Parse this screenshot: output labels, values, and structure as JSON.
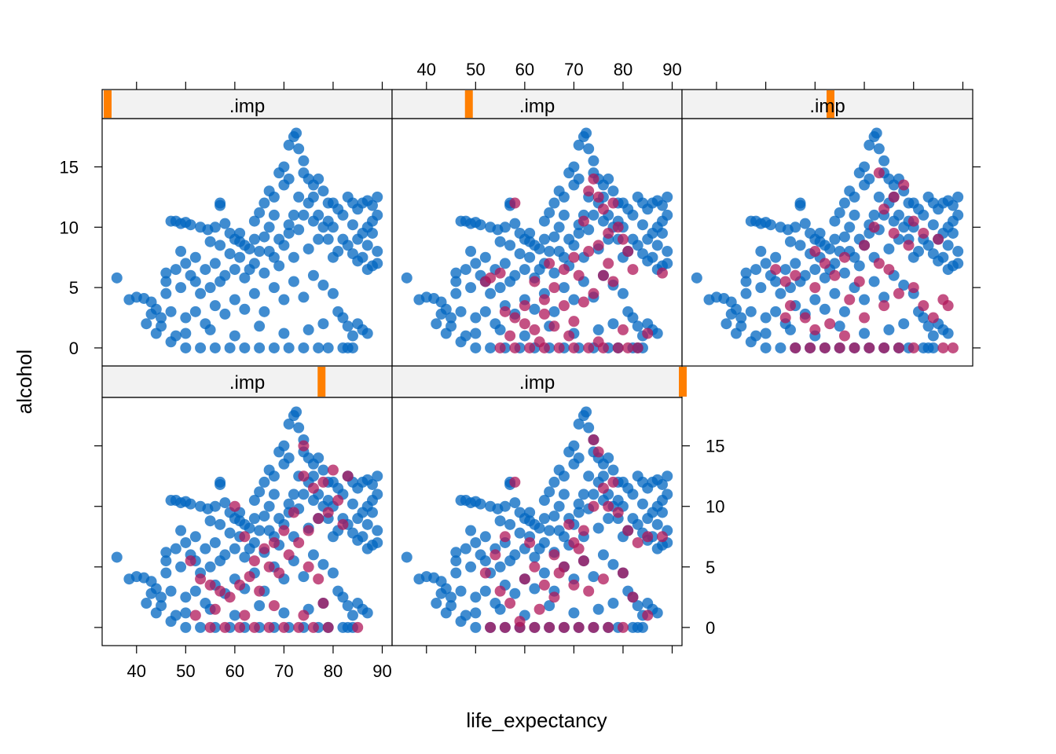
{
  "chart_data": {
    "type": "scatter",
    "layout": "trellis 3 columns x 2 rows, 5 panels",
    "xlabel": "life_expectancy",
    "ylabel": "alcohol",
    "xlim": [
      33,
      92
    ],
    "ylim": [
      -1.5,
      19
    ],
    "x_ticks": [
      "40",
      "50",
      "60",
      "70",
      "80",
      "90"
    ],
    "y_ticks": [
      "0",
      "5",
      "10",
      "15"
    ],
    "colors": {
      "observed": "#0066C0",
      "imputed": "#B0175A",
      "strip_bg": "#F2F2F2",
      "strip_indicator": "#FF7F00"
    },
    "panels": [
      {
        "strip_label": ".imp",
        "imp_index": 0,
        "strip_level": 0.0
      },
      {
        "strip_label": ".imp",
        "imp_index": 1,
        "strip_level": 0.25
      },
      {
        "strip_label": ".imp",
        "imp_index": 2,
        "strip_level": 0.5
      },
      {
        "strip_label": ".imp",
        "imp_index": 3,
        "strip_level": 0.75
      },
      {
        "strip_label": ".imp",
        "imp_index": 4,
        "strip_level": 1.0
      }
    ],
    "observed": [
      [
        36,
        5.8
      ],
      [
        38.5,
        4.0
      ],
      [
        40,
        4.2
      ],
      [
        41.5,
        4.1
      ],
      [
        43,
        3.8
      ],
      [
        44,
        1.2
      ],
      [
        45,
        2.5
      ],
      [
        46,
        6.2
      ],
      [
        47,
        10.5
      ],
      [
        48,
        10.5
      ],
      [
        49,
        10.3
      ],
      [
        50,
        10.4
      ],
      [
        51,
        10.2
      ],
      [
        53,
        10.0
      ],
      [
        54.5,
        9.8
      ],
      [
        56,
        10.0
      ],
      [
        57,
        11.8
      ],
      [
        58,
        10.3
      ],
      [
        59,
        9.5
      ],
      [
        60,
        9.0
      ],
      [
        61,
        8.8
      ],
      [
        62,
        8.5
      ],
      [
        63,
        8.2
      ],
      [
        64,
        10.5
      ],
      [
        65,
        11.2
      ],
      [
        66,
        12.0
      ],
      [
        67,
        13.0
      ],
      [
        68,
        12.5
      ],
      [
        69,
        14.5
      ],
      [
        70,
        15.0
      ],
      [
        71,
        16.8
      ],
      [
        72,
        17.5
      ],
      [
        72.5,
        17.8
      ],
      [
        73,
        16.5
      ],
      [
        74,
        14.5
      ],
      [
        75,
        14.0
      ],
      [
        76,
        13.5
      ],
      [
        77,
        14.0
      ],
      [
        78,
        13.0
      ],
      [
        79,
        12.0
      ],
      [
        80,
        12.0
      ],
      [
        81,
        11.5
      ],
      [
        82,
        11.0
      ],
      [
        83,
        12.5
      ],
      [
        84,
        12.0
      ],
      [
        85,
        11.5
      ],
      [
        86,
        12.0
      ],
      [
        87,
        12.2
      ],
      [
        88,
        11.8
      ],
      [
        89,
        12.5
      ],
      [
        89,
        11.0
      ],
      [
        88,
        9.5
      ],
      [
        87,
        8.5
      ],
      [
        86,
        7.5
      ],
      [
        85,
        7.2
      ],
      [
        84,
        7.8
      ],
      [
        83,
        8.5
      ],
      [
        88,
        6.8
      ],
      [
        89,
        7.0
      ],
      [
        87,
        6.5
      ],
      [
        82,
        9.0
      ],
      [
        81,
        8.0
      ],
      [
        80,
        7.5
      ],
      [
        79,
        9.0
      ],
      [
        78,
        10.0
      ],
      [
        77,
        11.0
      ],
      [
        76,
        10.5
      ],
      [
        75,
        12.0
      ],
      [
        74,
        11.0
      ],
      [
        73,
        12.5
      ],
      [
        72,
        11.0
      ],
      [
        71,
        9.5
      ],
      [
        70,
        8.5
      ],
      [
        69,
        9.0
      ],
      [
        68,
        7.5
      ],
      [
        67,
        8.0
      ],
      [
        66,
        9.2
      ],
      [
        65,
        8.0
      ],
      [
        64,
        7.0
      ],
      [
        63,
        6.5
      ],
      [
        62,
        5.8
      ],
      [
        61,
        7.5
      ],
      [
        60,
        6.5
      ],
      [
        59,
        7.8
      ],
      [
        58,
        6.0
      ],
      [
        57,
        5.5
      ],
      [
        56,
        7.0
      ],
      [
        55,
        5.0
      ],
      [
        54,
        6.5
      ],
      [
        53,
        4.5
      ],
      [
        52,
        5.5
      ],
      [
        51,
        6.0
      ],
      [
        50,
        7.0
      ],
      [
        49,
        5.0
      ],
      [
        48,
        6.5
      ],
      [
        47,
        3.0
      ],
      [
        46,
        4.5
      ],
      [
        45,
        1.8
      ],
      [
        48,
        1.0
      ],
      [
        50,
        2.5
      ],
      [
        52,
        3.0
      ],
      [
        54,
        2.0
      ],
      [
        56,
        3.5
      ],
      [
        58,
        2.8
      ],
      [
        60,
        4.0
      ],
      [
        62,
        3.2
      ],
      [
        64,
        4.5
      ],
      [
        66,
        3.0
      ],
      [
        68,
        5.0
      ],
      [
        70,
        4.0
      ],
      [
        72,
        5.5
      ],
      [
        74,
        4.2
      ],
      [
        76,
        6.0
      ],
      [
        78,
        5.2
      ],
      [
        80,
        4.5
      ],
      [
        81,
        3.0
      ],
      [
        82,
        2.5
      ],
      [
        83,
        1.8
      ],
      [
        84,
        1.0
      ],
      [
        85,
        2.0
      ],
      [
        86,
        1.5
      ],
      [
        87,
        1.2
      ],
      [
        82,
        0.0
      ],
      [
        83,
        0.0
      ],
      [
        84,
        0.0
      ],
      [
        50,
        0.0
      ],
      [
        53,
        0.0
      ],
      [
        56,
        0.0
      ],
      [
        59,
        0.0
      ],
      [
        62,
        0.0
      ],
      [
        65,
        0.0
      ],
      [
        68,
        0.0
      ],
      [
        71,
        0.0
      ],
      [
        74,
        0.0
      ],
      [
        77,
        0.0
      ],
      [
        79,
        0.0
      ],
      [
        50,
        1.2
      ],
      [
        55,
        1.5
      ],
      [
        60,
        1.0
      ],
      [
        65,
        1.8
      ],
      [
        70,
        1.2
      ],
      [
        75,
        1.5
      ],
      [
        78,
        2.0
      ],
      [
        66,
        6.2
      ],
      [
        69,
        6.8
      ],
      [
        72,
        7.5
      ],
      [
        75,
        8.2
      ],
      [
        77,
        9.0
      ],
      [
        79,
        10.5
      ],
      [
        73,
        9.8
      ],
      [
        71,
        10.2
      ],
      [
        68,
        11.0
      ],
      [
        67,
        10.0
      ],
      [
        64,
        9.0
      ],
      [
        61,
        9.5
      ],
      [
        57,
        8.5
      ],
      [
        55,
        8.8
      ],
      [
        52,
        7.5
      ],
      [
        49,
        8.0
      ],
      [
        46,
        5.5
      ],
      [
        44,
        3.2
      ],
      [
        42,
        2.0
      ],
      [
        43,
        2.8
      ],
      [
        47,
        0.5
      ],
      [
        57,
        12.0
      ],
      [
        70,
        13.5
      ],
      [
        74,
        15.5
      ],
      [
        71,
        14.0
      ],
      [
        76,
        12.5
      ],
      [
        80,
        10.0
      ],
      [
        86,
        9.5
      ],
      [
        88,
        10.5
      ],
      [
        87,
        10.0
      ],
      [
        85,
        9.0
      ],
      [
        84,
        10.2
      ],
      [
        89,
        8.0
      ]
    ],
    "imputed": [
      [],
      [
        [
          58,
          12.0
        ],
        [
          53,
          5.8
        ],
        [
          55,
          6.2
        ],
        [
          52,
          5.5
        ],
        [
          56,
          3.0
        ],
        [
          58,
          2.5
        ],
        [
          60,
          2.0
        ],
        [
          62,
          1.5
        ],
        [
          64,
          2.8
        ],
        [
          66,
          1.8
        ],
        [
          68,
          3.5
        ],
        [
          70,
          2.2
        ],
        [
          72,
          3.8
        ],
        [
          74,
          4.5
        ],
        [
          76,
          6.0
        ],
        [
          78,
          5.5
        ],
        [
          75,
          8.5
        ],
        [
          77,
          9.5
        ],
        [
          79,
          10.0
        ],
        [
          80,
          9.0
        ],
        [
          81,
          8.0
        ],
        [
          76,
          11.5
        ],
        [
          75,
          12.5
        ],
        [
          73,
          13.0
        ],
        [
          74,
          14.0
        ],
        [
          78,
          12.0
        ],
        [
          72,
          10.5
        ],
        [
          70,
          7.5
        ],
        [
          68,
          6.5
        ],
        [
          66,
          5.0
        ],
        [
          64,
          4.0
        ],
        [
          62,
          5.5
        ],
        [
          60,
          3.5
        ],
        [
          82,
          6.5
        ],
        [
          88,
          6.2
        ],
        [
          85,
          1.2
        ],
        [
          55,
          0.0
        ],
        [
          58,
          0.0
        ],
        [
          61,
          0.0
        ],
        [
          64,
          0.0
        ],
        [
          67,
          0.0
        ],
        [
          70,
          0.0
        ],
        [
          73,
          0.0
        ],
        [
          76,
          0.0
        ],
        [
          79,
          0.0
        ],
        [
          81,
          0.0
        ],
        [
          83,
          0.0
        ],
        [
          57,
          1.0
        ],
        [
          63,
          0.5
        ],
        [
          69,
          1.0
        ],
        [
          75,
          0.5
        ],
        [
          80,
          1.5
        ],
        [
          77,
          7.0
        ],
        [
          73,
          8.0
        ],
        [
          71,
          6.0
        ],
        [
          65,
          7.0
        ]
      ],
      [
        [
          73,
          14.5
        ],
        [
          78,
          13.5
        ],
        [
          76,
          12.5
        ],
        [
          74,
          11.5
        ],
        [
          80,
          10.5
        ],
        [
          82,
          9.5
        ],
        [
          85,
          9.0
        ],
        [
          79,
          8.5
        ],
        [
          76,
          9.5
        ],
        [
          72,
          10.0
        ],
        [
          70,
          8.5
        ],
        [
          66,
          7.5
        ],
        [
          64,
          6.0
        ],
        [
          62,
          7.0
        ],
        [
          60,
          5.0
        ],
        [
          56,
          6.0
        ],
        [
          54,
          5.5
        ],
        [
          52,
          6.5
        ],
        [
          55,
          3.5
        ],
        [
          58,
          2.5
        ],
        [
          60,
          1.5
        ],
        [
          63,
          2.0
        ],
        [
          66,
          1.0
        ],
        [
          70,
          2.5
        ],
        [
          74,
          3.5
        ],
        [
          77,
          4.5
        ],
        [
          80,
          5.0
        ],
        [
          82,
          3.5
        ],
        [
          84,
          2.5
        ],
        [
          86,
          4.0
        ],
        [
          87,
          3.5
        ],
        [
          54,
          2.5
        ],
        [
          56,
          0.0
        ],
        [
          59,
          0.0
        ],
        [
          62,
          0.0
        ],
        [
          65,
          0.0
        ],
        [
          68,
          0.0
        ],
        [
          71,
          0.0
        ],
        [
          74,
          0.0
        ],
        [
          77,
          0.0
        ],
        [
          80,
          0.0
        ],
        [
          86,
          0.0
        ],
        [
          88,
          0.0
        ],
        [
          75,
          6.5
        ],
        [
          73,
          7.0
        ],
        [
          69,
          5.5
        ],
        [
          67,
          4.0
        ],
        [
          60,
          8.0
        ]
      ],
      [
        [
          51,
          5.5
        ],
        [
          53,
          4.0
        ],
        [
          55,
          3.5
        ],
        [
          57,
          3.0
        ],
        [
          59,
          2.5
        ],
        [
          61,
          3.5
        ],
        [
          63,
          4.2
        ],
        [
          65,
          3.0
        ],
        [
          67,
          5.0
        ],
        [
          69,
          4.5
        ],
        [
          71,
          6.0
        ],
        [
          73,
          7.0
        ],
        [
          75,
          8.0
        ],
        [
          77,
          9.0
        ],
        [
          79,
          9.5
        ],
        [
          81,
          10.5
        ],
        [
          83,
          12.5
        ],
        [
          78,
          12.0
        ],
        [
          76,
          11.5
        ],
        [
          74,
          12.5
        ],
        [
          72,
          9.5
        ],
        [
          70,
          8.0
        ],
        [
          68,
          7.0
        ],
        [
          66,
          6.5
        ],
        [
          64,
          5.5
        ],
        [
          60,
          10.0
        ],
        [
          62,
          7.5
        ],
        [
          74,
          15.0
        ],
        [
          80,
          13.0
        ],
        [
          82,
          8.5
        ],
        [
          55,
          0.0
        ],
        [
          58,
          0.0
        ],
        [
          61,
          0.0
        ],
        [
          64,
          0.0
        ],
        [
          67,
          0.0
        ],
        [
          70,
          0.0
        ],
        [
          73,
          0.0
        ],
        [
          76,
          0.0
        ],
        [
          79,
          0.0
        ],
        [
          85,
          0.0
        ],
        [
          52,
          1.0
        ],
        [
          56,
          1.5
        ],
        [
          62,
          1.0
        ],
        [
          68,
          1.8
        ],
        [
          74,
          1.0
        ],
        [
          78,
          2.0
        ],
        [
          77,
          4.0
        ],
        [
          75,
          5.0
        ]
      ],
      [
        [
          58,
          12.0
        ],
        [
          56,
          7.5
        ],
        [
          54,
          6.0
        ],
        [
          52,
          4.5
        ],
        [
          55,
          3.0
        ],
        [
          57,
          2.0
        ],
        [
          60,
          4.0
        ],
        [
          62,
          5.0
        ],
        [
          64,
          3.5
        ],
        [
          66,
          6.0
        ],
        [
          68,
          5.0
        ],
        [
          70,
          7.0
        ],
        [
          72,
          8.0
        ],
        [
          74,
          10.0
        ],
        [
          76,
          11.5
        ],
        [
          78,
          12.0
        ],
        [
          74,
          15.5
        ],
        [
          75,
          14.5
        ],
        [
          77,
          10.0
        ],
        [
          79,
          9.5
        ],
        [
          81,
          8.0
        ],
        [
          83,
          7.0
        ],
        [
          85,
          7.5
        ],
        [
          88,
          7.5
        ],
        [
          80,
          4.5
        ],
        [
          82,
          2.5
        ],
        [
          85,
          1.0
        ],
        [
          72,
          5.5
        ],
        [
          70,
          3.5
        ],
        [
          66,
          2.5
        ],
        [
          63,
          1.5
        ],
        [
          59,
          0.5
        ],
        [
          53,
          0.0
        ],
        [
          56,
          0.0
        ],
        [
          59,
          0.0
        ],
        [
          62,
          0.0
        ],
        [
          65,
          0.0
        ],
        [
          68,
          0.0
        ],
        [
          71,
          0.0
        ],
        [
          74,
          0.0
        ],
        [
          77,
          0.0
        ],
        [
          80,
          0.0
        ],
        [
          67,
          4.5
        ],
        [
          73,
          3.0
        ],
        [
          76,
          4.0
        ],
        [
          71,
          6.5
        ],
        [
          69,
          8.5
        ],
        [
          61,
          7.0
        ]
      ]
    ]
  }
}
